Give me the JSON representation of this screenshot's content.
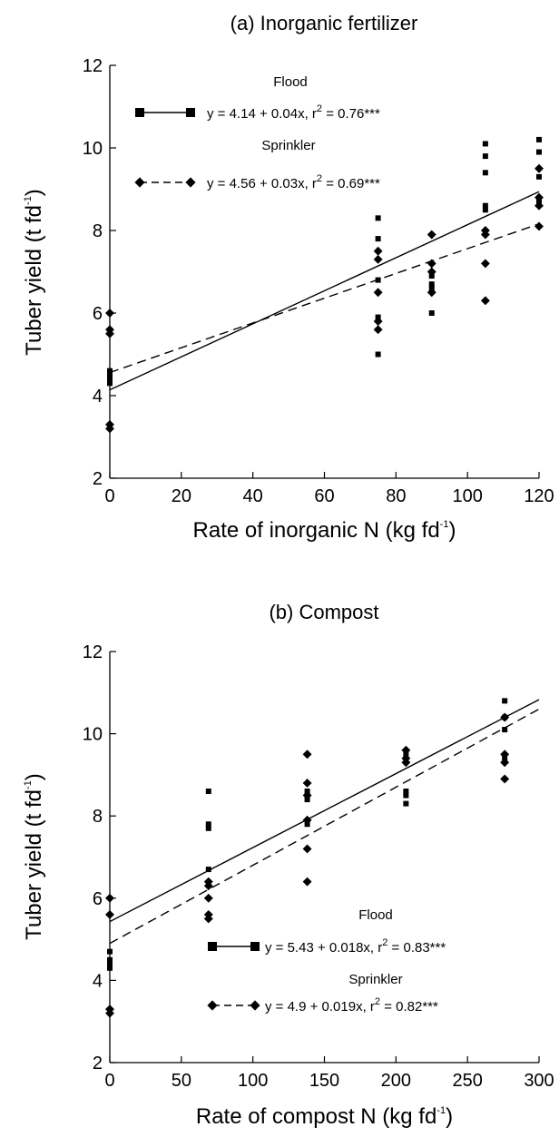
{
  "chart_data": [
    {
      "type": "scatter",
      "title": "(a) Inorganic fertilizer",
      "xlabel": "Rate of inorganic N (kg fd",
      "xlabel_sup": "-1",
      "xlabel_end": ")",
      "ylabel": "Tuber yield (t fd",
      "ylabel_sup": "-1",
      "ylabel_end": ")",
      "xlim": [
        0,
        120
      ],
      "ylim": [
        2,
        12
      ],
      "xticks": [
        0,
        20,
        40,
        60,
        80,
        100,
        120
      ],
      "yticks": [
        2,
        4,
        6,
        8,
        10,
        12
      ],
      "legend_position": "top-left",
      "series": [
        {
          "name": "Flood",
          "marker": "square",
          "line": "solid",
          "equation": "y = 4.14 + 0.04x, r",
          "equation_sup": "2",
          "equation_end": " = 0.76***",
          "fit": {
            "intercept": 4.14,
            "slope": 0.04
          },
          "points": [
            [
              0,
              4.6
            ],
            [
              0,
              4.4
            ],
            [
              0,
              4.3
            ],
            [
              0,
              4.5
            ],
            [
              75,
              8.3
            ],
            [
              75,
              7.8
            ],
            [
              75,
              6.8
            ],
            [
              75,
              5.9
            ],
            [
              75,
              5.0
            ],
            [
              90,
              6.9
            ],
            [
              90,
              6.7
            ],
            [
              90,
              6.6
            ],
            [
              90,
              6.0
            ],
            [
              105,
              10.1
            ],
            [
              105,
              9.8
            ],
            [
              105,
              9.4
            ],
            [
              105,
              8.6
            ],
            [
              105,
              8.5
            ],
            [
              120,
              10.2
            ],
            [
              120,
              9.9
            ],
            [
              120,
              9.3
            ],
            [
              120,
              8.7
            ]
          ]
        },
        {
          "name": "Sprinkler",
          "marker": "diamond",
          "line": "dashed",
          "equation": "y = 4.56 + 0.03x, r",
          "equation_sup": "2",
          "equation_end": " = 0.69***",
          "fit": {
            "intercept": 4.56,
            "slope": 0.03
          },
          "points": [
            [
              0,
              6.0
            ],
            [
              0,
              5.6
            ],
            [
              0,
              5.5
            ],
            [
              0,
              3.3
            ],
            [
              0,
              3.2
            ],
            [
              75,
              7.5
            ],
            [
              75,
              7.3
            ],
            [
              75,
              6.5
            ],
            [
              75,
              5.8
            ],
            [
              75,
              5.6
            ],
            [
              90,
              7.9
            ],
            [
              90,
              7.2
            ],
            [
              90,
              7.0
            ],
            [
              90,
              6.5
            ],
            [
              105,
              8.0
            ],
            [
              105,
              7.9
            ],
            [
              105,
              7.2
            ],
            [
              105,
              6.3
            ],
            [
              120,
              9.5
            ],
            [
              120,
              8.8
            ],
            [
              120,
              8.6
            ],
            [
              120,
              8.1
            ]
          ]
        }
      ]
    },
    {
      "type": "scatter",
      "title": "(b) Compost",
      "xlabel": "Rate of compost N (kg fd",
      "xlabel_sup": "-1",
      "xlabel_end": ")",
      "ylabel": "Tuber yield (t fd",
      "ylabel_sup": "-1",
      "ylabel_end": ")",
      "xlim": [
        0,
        300
      ],
      "ylim": [
        2,
        12
      ],
      "xticks": [
        0,
        50,
        100,
        150,
        200,
        250,
        300
      ],
      "yticks": [
        2,
        4,
        6,
        8,
        10,
        12
      ],
      "legend_position": "bottom-right",
      "series": [
        {
          "name": "Flood",
          "marker": "square",
          "line": "solid",
          "equation": "y = 5.43 + 0.018x, r",
          "equation_sup": "2",
          "equation_end": " = 0.83***",
          "fit": {
            "intercept": 5.43,
            "slope": 0.018
          },
          "points": [
            [
              0,
              4.7
            ],
            [
              0,
              4.5
            ],
            [
              0,
              4.4
            ],
            [
              0,
              4.3
            ],
            [
              69,
              8.6
            ],
            [
              69,
              7.8
            ],
            [
              69,
              7.7
            ],
            [
              69,
              6.7
            ],
            [
              138,
              8.6
            ],
            [
              138,
              8.5
            ],
            [
              138,
              8.4
            ],
            [
              138,
              7.8
            ],
            [
              207,
              9.5
            ],
            [
              207,
              8.6
            ],
            [
              207,
              8.5
            ],
            [
              207,
              8.3
            ],
            [
              276,
              10.8
            ],
            [
              276,
              10.4
            ],
            [
              276,
              10.1
            ],
            [
              276,
              9.4
            ]
          ]
        },
        {
          "name": "Sprinkler",
          "marker": "diamond",
          "line": "dashed",
          "equation": "y = 4.9 + 0.019x, r",
          "equation_sup": "2",
          "equation_end": " = 0.82***",
          "fit": {
            "intercept": 4.9,
            "slope": 0.019
          },
          "points": [
            [
              0,
              6.0
            ],
            [
              0,
              5.6
            ],
            [
              0,
              3.3
            ],
            [
              0,
              3.2
            ],
            [
              69,
              6.4
            ],
            [
              69,
              6.3
            ],
            [
              69,
              6.0
            ],
            [
              69,
              5.6
            ],
            [
              69,
              5.5
            ],
            [
              138,
              9.5
            ],
            [
              138,
              8.8
            ],
            [
              138,
              8.5
            ],
            [
              138,
              7.9
            ],
            [
              138,
              7.2
            ],
            [
              138,
              6.4
            ],
            [
              207,
              9.6
            ],
            [
              207,
              9.4
            ],
            [
              207,
              9.3
            ],
            [
              276,
              10.4
            ],
            [
              276,
              9.5
            ],
            [
              276,
              9.3
            ],
            [
              276,
              8.9
            ]
          ]
        }
      ]
    }
  ]
}
